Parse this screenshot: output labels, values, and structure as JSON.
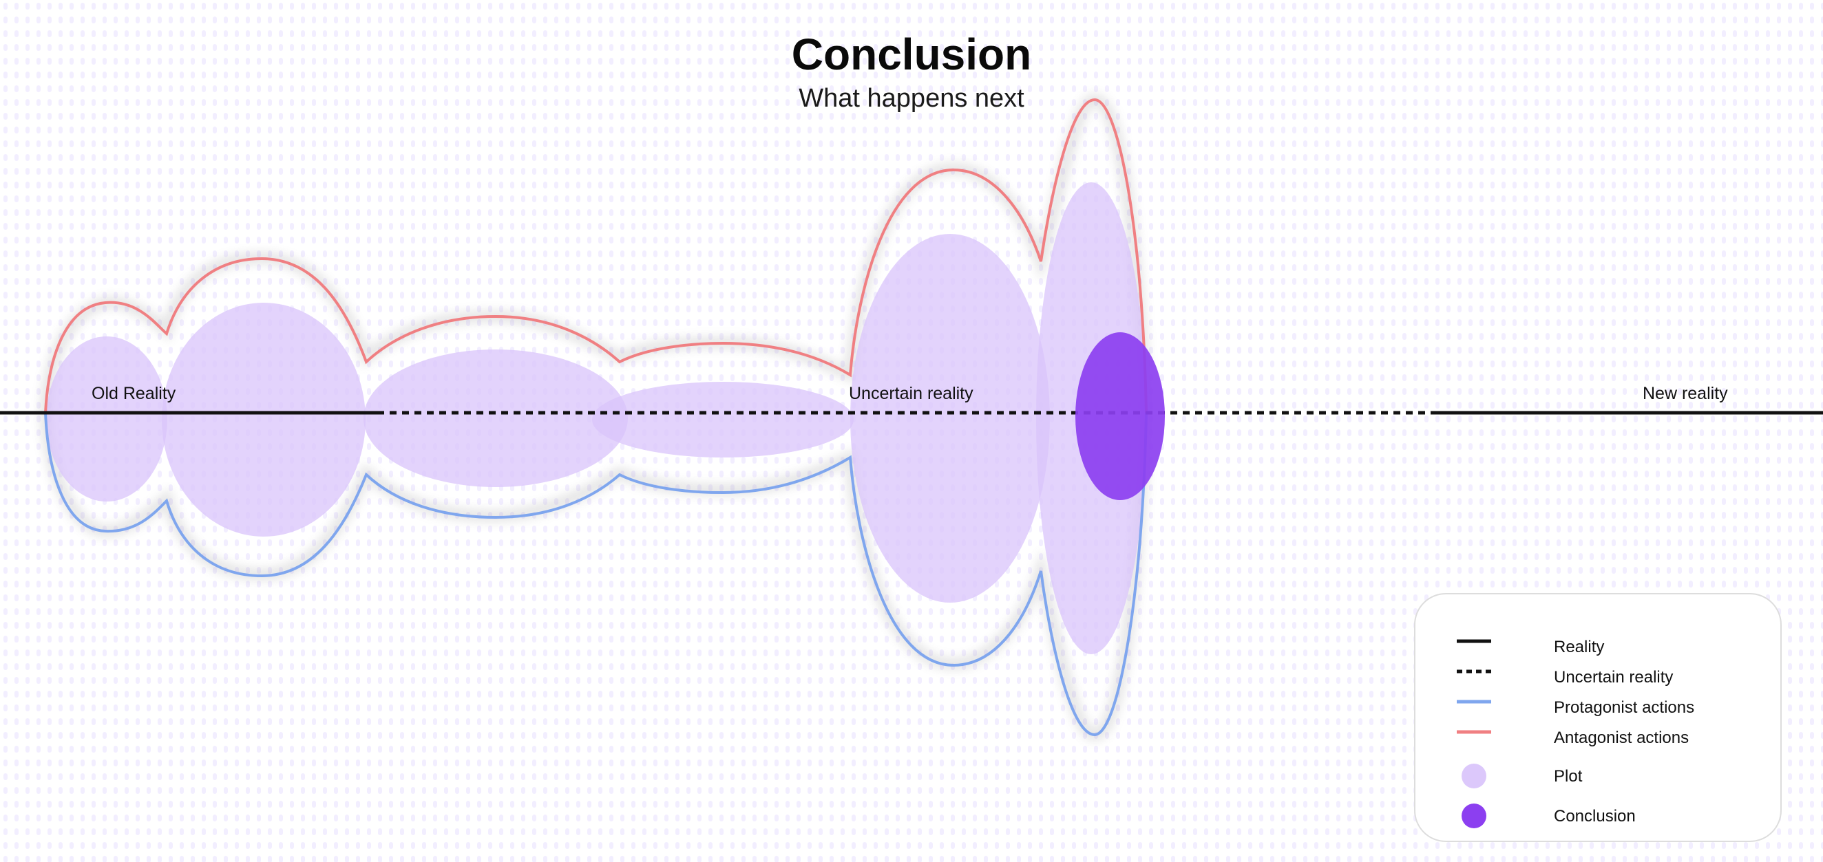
{
  "header": {
    "title": "Conclusion",
    "subtitle": "What happens next"
  },
  "markers": {
    "old": "Old Reality",
    "uncertain": "Uncertain reality",
    "new": "New reality"
  },
  "legend": {
    "items": [
      {
        "name": "legend-reality",
        "label": "Reality",
        "swatch": "solid-line",
        "color": "#111111"
      },
      {
        "name": "legend-uncertain-reality",
        "label": "Uncertain reality",
        "swatch": "dashed-line",
        "color": "#111111"
      },
      {
        "name": "legend-protagonist-actions",
        "label": "Protagonist actions",
        "swatch": "solid-line",
        "color": "#7fa6ee"
      },
      {
        "name": "legend-antagonist-actions",
        "label": "Antagonist actions",
        "swatch": "solid-line",
        "color": "#f07f82"
      },
      {
        "name": "legend-plot",
        "label": "Plot",
        "swatch": "circle",
        "color": "#dcc8fb"
      },
      {
        "name": "legend-conclusion",
        "label": "Conclusion",
        "swatch": "circle",
        "color": "#8c3ff0"
      }
    ]
  },
  "colors": {
    "reality": "#111111",
    "protagonist": "#7fa6ee",
    "antagonist": "#f07f82",
    "plot": "#d9c4fb",
    "conclusion": "#8c3ff0"
  }
}
